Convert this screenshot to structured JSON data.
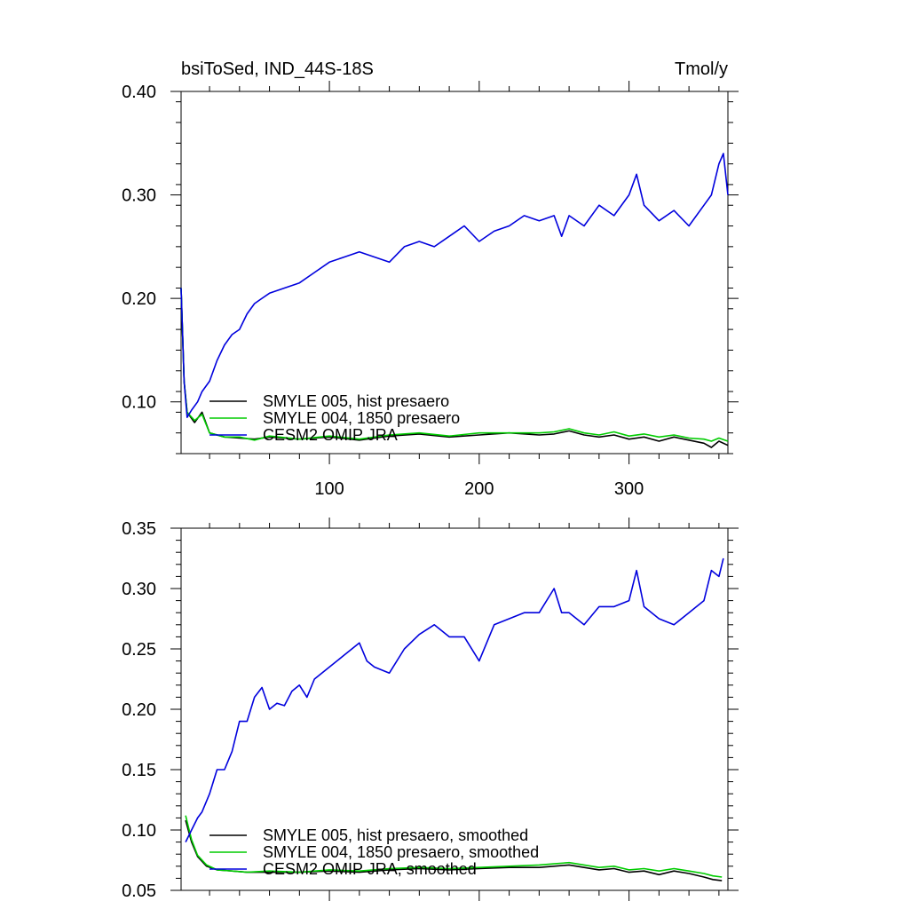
{
  "chart_data": [
    {
      "type": "line",
      "title": "bsiToSed, IND_44S-18S",
      "units": "Tmol/y",
      "xlim": [
        1,
        366
      ],
      "ylim": [
        0.05,
        0.4
      ],
      "xticks": [
        100,
        200,
        300
      ],
      "xtick_labels": [
        "100",
        "200",
        "300"
      ],
      "yticks": [
        0.1,
        0.2,
        0.3,
        0.4
      ],
      "ytick_labels": [
        "0.10",
        "0.20",
        "0.30",
        "0.40"
      ],
      "legend": [
        "SMYLE 005, hist presaero",
        "SMYLE 004, 1850 presaero",
        "CESM2 OMIP JRA"
      ],
      "series": [
        {
          "name": "SMYLE 005, hist presaero",
          "color": "#000000",
          "x": [
            1,
            3,
            5,
            10,
            15,
            20,
            30,
            40,
            50,
            60,
            80,
            100,
            120,
            140,
            160,
            180,
            200,
            220,
            240,
            250,
            260,
            270,
            280,
            290,
            300,
            310,
            320,
            330,
            340,
            350,
            355,
            360,
            366
          ],
          "y": [
            0.21,
            0.12,
            0.09,
            0.08,
            0.09,
            0.07,
            0.066,
            0.065,
            0.064,
            0.066,
            0.064,
            0.066,
            0.063,
            0.067,
            0.069,
            0.066,
            0.068,
            0.07,
            0.068,
            0.069,
            0.072,
            0.068,
            0.066,
            0.068,
            0.064,
            0.066,
            0.062,
            0.066,
            0.063,
            0.06,
            0.056,
            0.062,
            0.058
          ]
        },
        {
          "name": "SMYLE 004, 1850 presaero",
          "color": "#00cc00",
          "x": [
            1,
            3,
            5,
            10,
            15,
            20,
            30,
            40,
            50,
            60,
            80,
            100,
            120,
            140,
            160,
            180,
            200,
            220,
            240,
            250,
            260,
            270,
            280,
            290,
            300,
            310,
            320,
            330,
            340,
            350,
            355,
            360,
            366
          ],
          "y": [
            0.21,
            0.12,
            0.09,
            0.082,
            0.088,
            0.07,
            0.066,
            0.066,
            0.063,
            0.067,
            0.064,
            0.067,
            0.064,
            0.068,
            0.07,
            0.067,
            0.07,
            0.07,
            0.07,
            0.071,
            0.074,
            0.07,
            0.068,
            0.071,
            0.067,
            0.069,
            0.066,
            0.068,
            0.065,
            0.064,
            0.062,
            0.065,
            0.062
          ]
        },
        {
          "name": "CESM2 OMIP JRA",
          "color": "#0000dd",
          "x": [
            1,
            3,
            5,
            8,
            12,
            15,
            20,
            25,
            30,
            35,
            40,
            45,
            50,
            55,
            60,
            70,
            80,
            90,
            100,
            110,
            120,
            130,
            140,
            150,
            160,
            170,
            180,
            190,
            200,
            210,
            220,
            230,
            240,
            250,
            255,
            260,
            270,
            280,
            290,
            300,
            305,
            310,
            320,
            330,
            340,
            350,
            355,
            360,
            363,
            366
          ],
          "y": [
            0.21,
            0.12,
            0.085,
            0.092,
            0.1,
            0.11,
            0.12,
            0.14,
            0.155,
            0.165,
            0.17,
            0.185,
            0.195,
            0.2,
            0.205,
            0.21,
            0.215,
            0.225,
            0.235,
            0.24,
            0.245,
            0.24,
            0.235,
            0.25,
            0.255,
            0.25,
            0.26,
            0.27,
            0.255,
            0.265,
            0.27,
            0.28,
            0.275,
            0.28,
            0.26,
            0.28,
            0.27,
            0.29,
            0.28,
            0.3,
            0.32,
            0.29,
            0.275,
            0.285,
            0.27,
            0.29,
            0.3,
            0.33,
            0.34,
            0.3
          ]
        }
      ]
    },
    {
      "type": "line",
      "xlim": [
        1,
        366
      ],
      "ylim": [
        0.05,
        0.35
      ],
      "xticks": [
        100,
        200,
        300
      ],
      "yticks": [
        0.05,
        0.1,
        0.15,
        0.2,
        0.25,
        0.3,
        0.35
      ],
      "ytick_labels": [
        "0.05",
        "0.10",
        "0.15",
        "0.20",
        "0.25",
        "0.30",
        "0.35"
      ],
      "legend": [
        "SMYLE 005, hist presaero, smoothed",
        "SMYLE 004, 1850 presaero, smoothed",
        "CESM2 OMIP JRA, smoothed"
      ],
      "series": [
        {
          "name": "SMYLE 005, hist presaero, smoothed",
          "color": "#000000",
          "x": [
            4,
            8,
            12,
            18,
            25,
            35,
            45,
            60,
            80,
            100,
            120,
            140,
            160,
            180,
            200,
            220,
            240,
            250,
            260,
            270,
            280,
            290,
            300,
            310,
            320,
            330,
            340,
            350,
            356,
            362
          ],
          "y": [
            0.108,
            0.09,
            0.078,
            0.07,
            0.067,
            0.066,
            0.065,
            0.065,
            0.065,
            0.066,
            0.065,
            0.067,
            0.068,
            0.067,
            0.068,
            0.069,
            0.069,
            0.07,
            0.071,
            0.069,
            0.067,
            0.068,
            0.065,
            0.066,
            0.063,
            0.066,
            0.064,
            0.061,
            0.059,
            0.058
          ]
        },
        {
          "name": "SMYLE 004, 1850 presaero, smoothed",
          "color": "#00cc00",
          "x": [
            4,
            8,
            12,
            18,
            25,
            35,
            45,
            60,
            80,
            100,
            120,
            140,
            160,
            180,
            200,
            220,
            240,
            250,
            260,
            270,
            280,
            290,
            300,
            310,
            320,
            330,
            340,
            350,
            356,
            362
          ],
          "y": [
            0.112,
            0.092,
            0.079,
            0.071,
            0.067,
            0.066,
            0.065,
            0.066,
            0.065,
            0.067,
            0.066,
            0.068,
            0.069,
            0.068,
            0.069,
            0.07,
            0.071,
            0.072,
            0.073,
            0.071,
            0.069,
            0.07,
            0.067,
            0.068,
            0.066,
            0.068,
            0.066,
            0.064,
            0.062,
            0.061
          ]
        },
        {
          "name": "CESM2 OMIP JRA, smoothed",
          "color": "#0000dd",
          "x": [
            4,
            8,
            12,
            15,
            20,
            25,
            30,
            35,
            40,
            45,
            50,
            55,
            60,
            65,
            70,
            75,
            80,
            85,
            90,
            100,
            110,
            120,
            125,
            130,
            140,
            150,
            160,
            170,
            180,
            190,
            200,
            210,
            220,
            230,
            240,
            250,
            255,
            260,
            270,
            280,
            290,
            300,
            305,
            310,
            320,
            330,
            340,
            345,
            350,
            355,
            360,
            363
          ],
          "y": [
            0.09,
            0.1,
            0.11,
            0.115,
            0.13,
            0.15,
            0.15,
            0.165,
            0.19,
            0.19,
            0.21,
            0.218,
            0.2,
            0.205,
            0.203,
            0.215,
            0.22,
            0.21,
            0.225,
            0.235,
            0.245,
            0.255,
            0.24,
            0.235,
            0.23,
            0.25,
            0.262,
            0.27,
            0.26,
            0.26,
            0.24,
            0.27,
            0.275,
            0.28,
            0.28,
            0.3,
            0.28,
            0.28,
            0.27,
            0.285,
            0.285,
            0.29,
            0.315,
            0.285,
            0.275,
            0.27,
            0.28,
            0.285,
            0.29,
            0.315,
            0.31,
            0.325
          ]
        }
      ]
    }
  ]
}
